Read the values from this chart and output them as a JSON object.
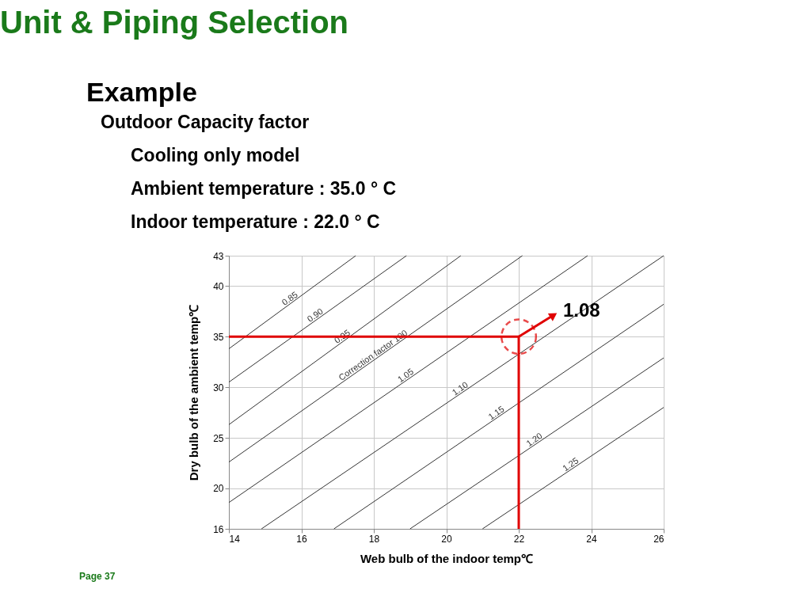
{
  "chart_data": {
    "type": "line",
    "title": "Unit & Piping Selection",
    "subtitle": "Example",
    "xlabel": "Web bulb of the indoor temp℃",
    "ylabel": "Dry bulb of the ambient temp℃",
    "xlim": [
      14,
      26
    ],
    "xticks": [
      14,
      16,
      18,
      20,
      22,
      24,
      26
    ],
    "ylim": [
      16,
      43
    ],
    "yticks": [
      16,
      20,
      25,
      30,
      35,
      40,
      43
    ],
    "grid": true,
    "legend": false,
    "marker": "none",
    "line_style": "solid",
    "series": [
      {
        "name": "0.85",
        "color": "#333333",
        "x": [
          14,
          17.5
        ],
        "values": [
          33.8,
          43
        ]
      },
      {
        "name": "0.90",
        "color": "#333333",
        "x": [
          14,
          18.9
        ],
        "values": [
          30.5,
          43
        ]
      },
      {
        "name": "0.95",
        "color": "#333333",
        "x": [
          14,
          20.4
        ],
        "values": [
          26.3,
          43
        ]
      },
      {
        "name": "Correction factor 100",
        "color": "#333333",
        "x": [
          14,
          22.1
        ],
        "values": [
          22.6,
          43
        ]
      },
      {
        "name": "1.05",
        "color": "#333333",
        "x": [
          14,
          23.9
        ],
        "values": [
          18.6,
          43
        ]
      },
      {
        "name": "1.10",
        "color": "#333333",
        "x": [
          14.9,
          26
        ],
        "values": [
          16,
          43
        ]
      },
      {
        "name": "1.15",
        "color": "#333333",
        "x": [
          16.9,
          26
        ],
        "values": [
          16,
          38.2
        ]
      },
      {
        "name": "1.20",
        "color": "#333333",
        "x": [
          19.0,
          26
        ],
        "values": [
          16,
          32.9
        ]
      },
      {
        "name": "1.25",
        "color": "#333333",
        "x": [
          21.0,
          26
        ],
        "values": [
          16,
          28.0
        ]
      }
    ],
    "ref_lines": [
      {
        "axis": "x",
        "value": 22,
        "label": null,
        "color": "#e00000"
      },
      {
        "axis": "y",
        "value": 35,
        "label": null,
        "color": "#e00000"
      }
    ],
    "annotations": [
      {
        "text": "1.08",
        "x": 22,
        "y": 35
      },
      "Outdoor Capacity factor",
      "Cooling only model",
      "Ambient temperature : 35.0 ° C",
      "Indoor temperature : 22.0 ° C",
      "Page 37"
    ]
  }
}
